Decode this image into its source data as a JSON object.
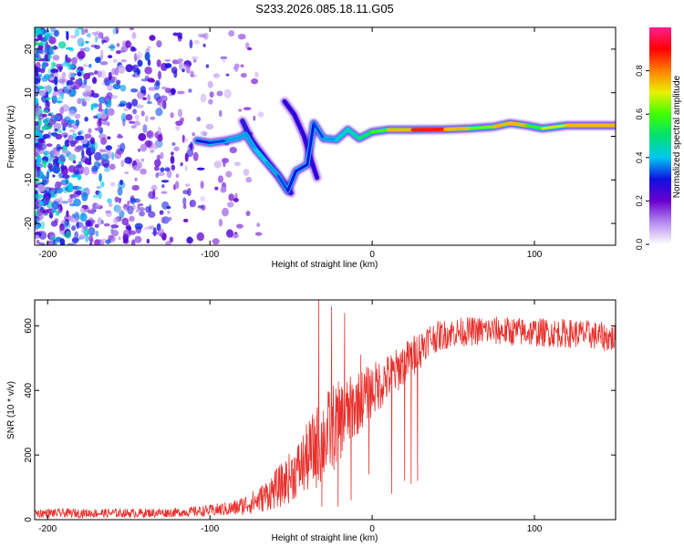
{
  "figure": {
    "title": "S233.2026.085.18.11.G05"
  },
  "chart_data": [
    {
      "type": "heatmap",
      "title": "S233.2026.085.18.11.G05",
      "xlabel": "Height of straight line (km)",
      "ylabel": "Frequency (Hz)",
      "xlim": [
        -208,
        150
      ],
      "ylim": [
        -25,
        25
      ],
      "x_ticks": [
        -200,
        -100,
        0,
        100
      ],
      "y_ticks": [
        -20,
        -10,
        0,
        10,
        20
      ],
      "colorbar": {
        "label": "Normalized spectral amplitude",
        "range": [
          0,
          1
        ],
        "ticks": [
          0.0,
          0.2,
          0.4,
          0.6,
          0.8
        ],
        "colormap": [
          "#ffffff",
          "#b58cf0",
          "#6a00d0",
          "#1010e0",
          "#00c8f0",
          "#00e070",
          "#40ff00",
          "#e8f000",
          "#ff8000",
          "#ff0000",
          "#ff2090"
        ]
      },
      "ridge": [
        {
          "x": -108,
          "y": -1.0,
          "a": 0.25
        },
        {
          "x": -100,
          "y": -1.5,
          "a": 0.3
        },
        {
          "x": -90,
          "y": -1.0,
          "a": 0.35
        },
        {
          "x": -82,
          "y": -0.3,
          "a": 0.4
        },
        {
          "x": -78,
          "y": 0.5,
          "a": 0.35
        },
        {
          "x": -72,
          "y": -3.0,
          "a": 0.4
        },
        {
          "x": -65,
          "y": -6.0,
          "a": 0.4
        },
        {
          "x": -58,
          "y": -9.0,
          "a": 0.35
        },
        {
          "x": -52,
          "y": -12.5,
          "a": 0.3
        },
        {
          "x": -47,
          "y": -8.0,
          "a": 0.3
        },
        {
          "x": -40,
          "y": -6.5,
          "a": 0.3
        },
        {
          "x": -36,
          "y": 3.0,
          "a": 0.3
        },
        {
          "x": -30,
          "y": -0.5,
          "a": 0.35
        },
        {
          "x": -22,
          "y": -0.8,
          "a": 0.4
        },
        {
          "x": -15,
          "y": 1.5,
          "a": 0.45
        },
        {
          "x": -8,
          "y": -0.5,
          "a": 0.45
        },
        {
          "x": 0,
          "y": 1.0,
          "a": 0.6
        },
        {
          "x": 10,
          "y": 1.5,
          "a": 0.6
        },
        {
          "x": 25,
          "y": 1.5,
          "a": 0.9
        },
        {
          "x": 45,
          "y": 1.6,
          "a": 0.85
        },
        {
          "x": 60,
          "y": 1.8,
          "a": 0.65
        },
        {
          "x": 75,
          "y": 2.2,
          "a": 0.6
        },
        {
          "x": 85,
          "y": 3.0,
          "a": 0.9
        },
        {
          "x": 95,
          "y": 2.5,
          "a": 0.6
        },
        {
          "x": 105,
          "y": 1.8,
          "a": 0.55
        },
        {
          "x": 120,
          "y": 2.5,
          "a": 0.8
        },
        {
          "x": 150,
          "y": 2.5,
          "a": 0.7
        }
      ],
      "branches": [
        {
          "points": [
            [
              -54,
              8.0
            ],
            [
              -48,
              5.0
            ],
            [
              -42,
              0.0
            ],
            [
              -38,
              -5.0
            ],
            [
              -34,
              -9.5
            ]
          ],
          "a": 0.3
        },
        {
          "points": [
            [
              -80,
              3.5
            ],
            [
              -74,
              -1.0
            ],
            [
              -68,
              -4.0
            ],
            [
              -62,
              -7.0
            ],
            [
              -55,
              -10.5
            ],
            [
              -50,
              -13.0
            ]
          ],
          "a": 0.32
        }
      ]
    },
    {
      "type": "line",
      "xlabel": "Height of straight line (km)",
      "ylabel": "SNR (10 * v/v)",
      "xlim": [
        -208,
        150
      ],
      "ylim": [
        0,
        680
      ],
      "x_ticks": [
        -200,
        -100,
        0,
        100
      ],
      "y_ticks": [
        0,
        200,
        400,
        600
      ],
      "color": "#e8302c",
      "envelope": [
        {
          "x": -208,
          "base": 20,
          "noise": 14
        },
        {
          "x": -150,
          "base": 20,
          "noise": 14
        },
        {
          "x": -120,
          "base": 22,
          "noise": 14
        },
        {
          "x": -100,
          "base": 28,
          "noise": 18
        },
        {
          "x": -85,
          "base": 35,
          "noise": 25
        },
        {
          "x": -70,
          "base": 60,
          "noise": 40
        },
        {
          "x": -55,
          "base": 110,
          "noise": 70
        },
        {
          "x": -45,
          "base": 160,
          "noise": 90
        },
        {
          "x": -35,
          "base": 220,
          "noise": 130
        },
        {
          "x": -25,
          "base": 280,
          "noise": 140
        },
        {
          "x": -15,
          "base": 330,
          "noise": 110
        },
        {
          "x": -5,
          "base": 380,
          "noise": 90
        },
        {
          "x": 5,
          "base": 420,
          "noise": 80
        },
        {
          "x": 15,
          "base": 460,
          "noise": 70
        },
        {
          "x": 25,
          "base": 510,
          "noise": 60
        },
        {
          "x": 35,
          "base": 560,
          "noise": 50
        },
        {
          "x": 50,
          "base": 580,
          "noise": 45
        },
        {
          "x": 70,
          "base": 585,
          "noise": 45
        },
        {
          "x": 100,
          "base": 580,
          "noise": 45
        },
        {
          "x": 130,
          "base": 575,
          "noise": 45
        },
        {
          "x": 150,
          "base": 560,
          "noise": 45
        }
      ],
      "spikes": [
        {
          "x": -33,
          "y": 680
        },
        {
          "x": -31,
          "y": 40
        },
        {
          "x": -25,
          "y": 660
        },
        {
          "x": -21,
          "y": 40
        },
        {
          "x": -17,
          "y": 640
        },
        {
          "x": -13,
          "y": 60
        },
        {
          "x": -7,
          "y": 510
        },
        {
          "x": -2,
          "y": 140
        },
        {
          "x": 8,
          "y": 460
        },
        {
          "x": 12,
          "y": 80
        },
        {
          "x": 18,
          "y": 520
        },
        {
          "x": 20,
          "y": 120
        },
        {
          "x": 22,
          "y": 490
        },
        {
          "x": 24,
          "y": 110
        },
        {
          "x": 26,
          "y": 450
        },
        {
          "x": 28,
          "y": 120
        },
        {
          "x": 30,
          "y": 470
        }
      ]
    }
  ]
}
